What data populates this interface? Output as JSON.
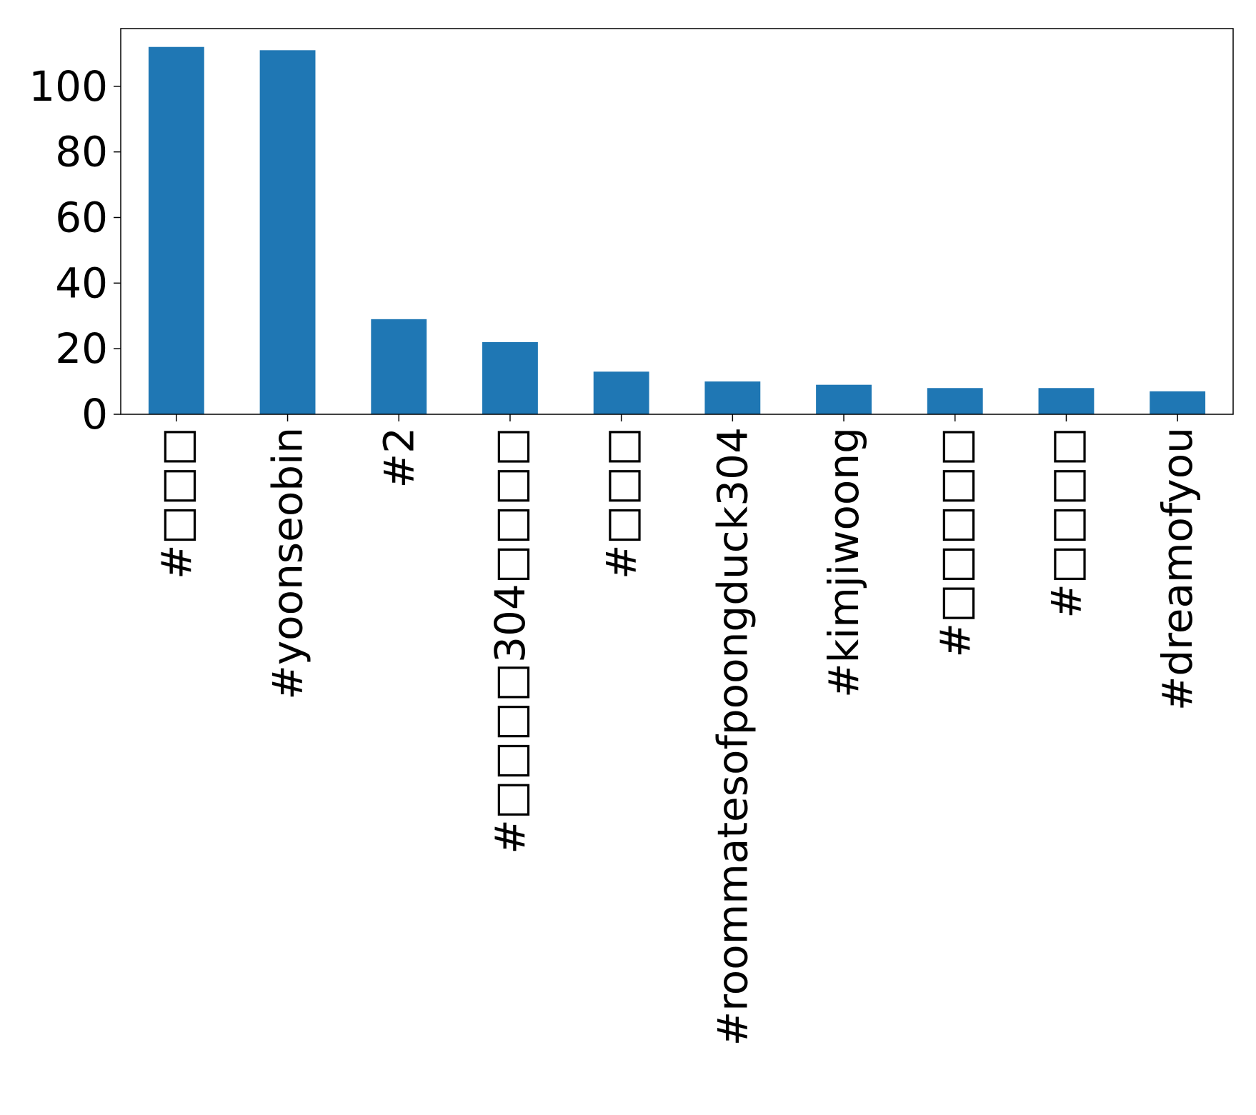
{
  "chart_data": {
    "type": "bar",
    "categories": [
      "#□□□",
      "#yoonseobin",
      "#2",
      "#□□□□304□□□□",
      "#□□□",
      "#roommatesofpoongduck304",
      "#kimjiwoong",
      "#□□□□□",
      "#□□□□",
      "#dreamofyou"
    ],
    "values": [
      112,
      111,
      29,
      22,
      13,
      10,
      9,
      8,
      8,
      7
    ],
    "title": "",
    "xlabel": "",
    "ylabel": "",
    "ylim": [
      0,
      117.6
    ],
    "yticks": [
      0,
      20,
      40,
      60,
      80,
      100
    ],
    "grid": false,
    "legend": false,
    "colors": {
      "bar": "#1f77b4",
      "axis": "#000000",
      "background": "#ffffff"
    }
  }
}
